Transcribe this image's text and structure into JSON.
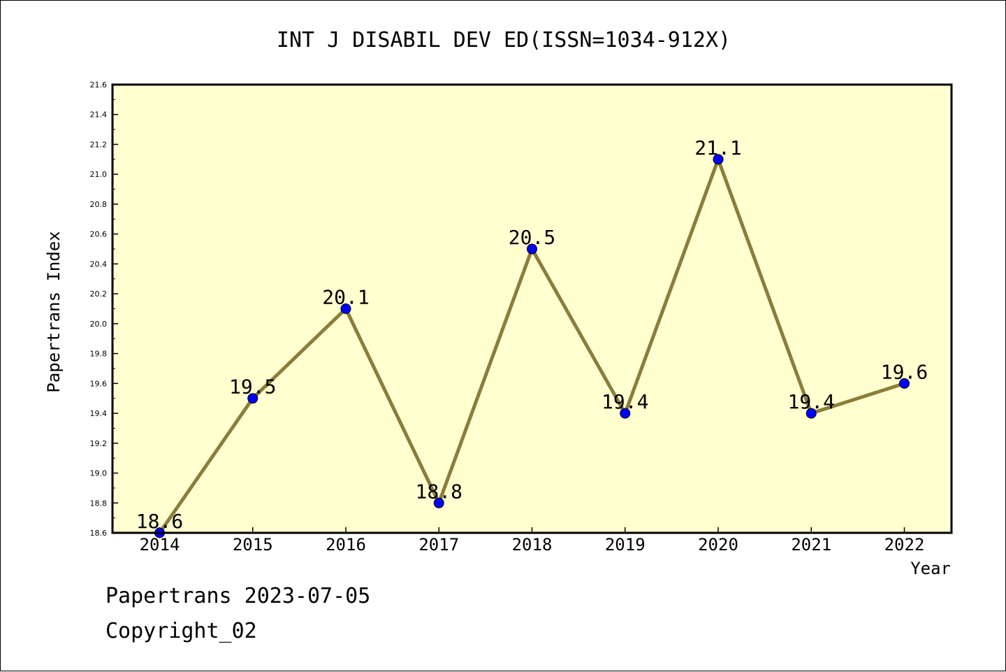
{
  "chart_data": {
    "type": "line",
    "title": "INT J DISABIL DEV ED(ISSN=1034-912X)",
    "xlabel": "Year",
    "ylabel": "Papertrans Index",
    "categories": [
      "2014",
      "2015",
      "2016",
      "2017",
      "2018",
      "2019",
      "2020",
      "2021",
      "2022"
    ],
    "series": [
      {
        "values": [
          18.6,
          19.5,
          20.1,
          18.8,
          20.5,
          19.4,
          21.1,
          19.4,
          19.6
        ],
        "labels": [
          "18.6",
          "19.5",
          "20.1",
          "18.8",
          "20.5",
          "19.4",
          "21.1",
          "19.4",
          "19.6"
        ]
      }
    ],
    "ylim": [
      18.6,
      21.6
    ],
    "yticks": [
      "18.6",
      "18.8",
      "19.0",
      "19.2",
      "19.4",
      "19.6",
      "19.8",
      "20.0",
      "20.2",
      "20.4",
      "20.6",
      "20.8",
      "21.0",
      "21.2",
      "21.4",
      "21.6"
    ],
    "grid": false,
    "colors": {
      "plot_background": "#ffffd0",
      "line": "#8b7d3a",
      "marker": "#0000ff"
    }
  },
  "footer": {
    "line1": "Papertrans 2023-07-05",
    "line2": "Copyright_02"
  }
}
